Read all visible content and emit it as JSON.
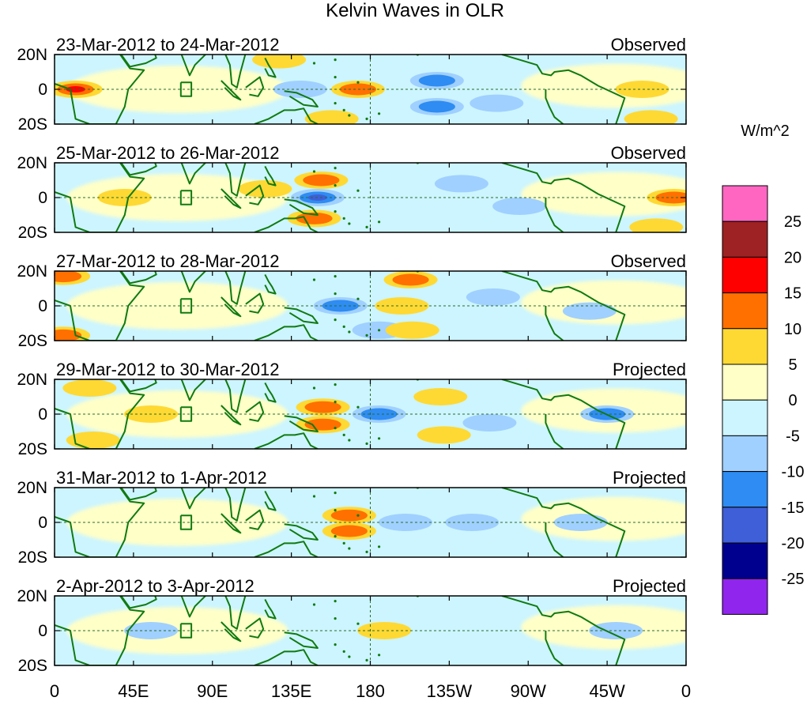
{
  "chart_data": {
    "type": "heatmap",
    "title": "Kelvin Waves in OLR",
    "units": "W/m^2",
    "lon_ticks": [
      "0",
      "45E",
      "90E",
      "135E",
      "180",
      "135W",
      "90W",
      "45W",
      "0"
    ],
    "lat_ticks": [
      "20N",
      "0",
      "20S"
    ],
    "colorbar_levels": [
      "25",
      "20",
      "15",
      "10",
      "5",
      "0",
      "-5",
      "-10",
      "-15",
      "-20",
      "-25"
    ],
    "colorbar_colors": [
      "#ff66c2",
      "#9e2223",
      "#ff0000",
      "#ff7000",
      "#ffd933",
      "#ffffc8",
      "#ccf5ff",
      "#a0d0ff",
      "#2e8cf2",
      "#3f5fd8",
      "#00008e",
      "#9025ee"
    ],
    "panels": [
      {
        "label": "23-Mar-2012 to 24-Mar-2012",
        "kind": "Observed",
        "anomalies": [
          {
            "lon": 12,
            "lat": 0,
            "value": 15
          },
          {
            "lon": 128,
            "lat": 17,
            "value": 8
          },
          {
            "lon": 158,
            "lat": -17,
            "value": 7
          },
          {
            "lon": 140,
            "lat": 0,
            "value": -8
          },
          {
            "lon": 173,
            "lat": 0,
            "value": 12
          },
          {
            "lon": 218,
            "lat": 5,
            "value": -12
          },
          {
            "lon": 218,
            "lat": -10,
            "value": -10
          },
          {
            "lon": 252,
            "lat": -8,
            "value": -6
          },
          {
            "lon": 335,
            "lat": 0,
            "value": 6
          },
          {
            "lon": 340,
            "lat": -17,
            "value": 6
          }
        ]
      },
      {
        "label": "25-Mar-2012 to 26-Mar-2012",
        "kind": "Observed",
        "anomalies": [
          {
            "lon": 152,
            "lat": 10,
            "value": 14
          },
          {
            "lon": 150,
            "lat": 0,
            "value": -16
          },
          {
            "lon": 148,
            "lat": -12,
            "value": 12
          },
          {
            "lon": 120,
            "lat": 5,
            "value": 6
          },
          {
            "lon": 232,
            "lat": 8,
            "value": -8
          },
          {
            "lon": 265,
            "lat": -5,
            "value": -7
          },
          {
            "lon": 40,
            "lat": 0,
            "value": 6
          },
          {
            "lon": 353,
            "lat": 0,
            "value": 10
          },
          {
            "lon": 343,
            "lat": -17,
            "value": 5
          }
        ]
      },
      {
        "label": "27-Mar-2012 to 28-Mar-2012",
        "kind": "Observed",
        "anomalies": [
          {
            "lon": 5,
            "lat": 17,
            "value": 12
          },
          {
            "lon": 5,
            "lat": -17,
            "value": 14
          },
          {
            "lon": 163,
            "lat": 0,
            "value": -12
          },
          {
            "lon": 185,
            "lat": -14,
            "value": -8
          },
          {
            "lon": 198,
            "lat": 0,
            "value": 6
          },
          {
            "lon": 203,
            "lat": 15,
            "value": 10
          },
          {
            "lon": 204,
            "lat": -14,
            "value": 9
          },
          {
            "lon": 250,
            "lat": 5,
            "value": -6
          },
          {
            "lon": 305,
            "lat": -3,
            "value": -9
          }
        ]
      },
      {
        "label": "29-Mar-2012 to 30-Mar-2012",
        "kind": "Projected",
        "anomalies": [
          {
            "lon": 20,
            "lat": 15,
            "value": 6
          },
          {
            "lon": 22,
            "lat": -15,
            "value": 7
          },
          {
            "lon": 55,
            "lat": 0,
            "value": 6
          },
          {
            "lon": 153,
            "lat": 4,
            "value": 14
          },
          {
            "lon": 153,
            "lat": -6,
            "value": 12
          },
          {
            "lon": 185,
            "lat": 0,
            "value": -12
          },
          {
            "lon": 220,
            "lat": 10,
            "value": 8
          },
          {
            "lon": 222,
            "lat": -12,
            "value": 8
          },
          {
            "lon": 315,
            "lat": 0,
            "value": -14
          },
          {
            "lon": 248,
            "lat": -5,
            "value": -6
          }
        ]
      },
      {
        "label": "31-Mar-2012 to 1-Apr-2012",
        "kind": "Projected",
        "anomalies": [
          {
            "lon": 168,
            "lat": 4,
            "value": 13
          },
          {
            "lon": 168,
            "lat": -5,
            "value": 11
          },
          {
            "lon": 200,
            "lat": 0,
            "value": -7
          },
          {
            "lon": 238,
            "lat": 0,
            "value": -6
          },
          {
            "lon": 300,
            "lat": 0,
            "value": -6
          }
        ]
      },
      {
        "label": "2-Apr-2012 to 3-Apr-2012",
        "kind": "Projected",
        "anomalies": [
          {
            "lon": 188,
            "lat": 0,
            "value": 7
          },
          {
            "lon": 55,
            "lat": 0,
            "value": -6
          },
          {
            "lon": 320,
            "lat": 0,
            "value": -5
          }
        ]
      }
    ]
  }
}
